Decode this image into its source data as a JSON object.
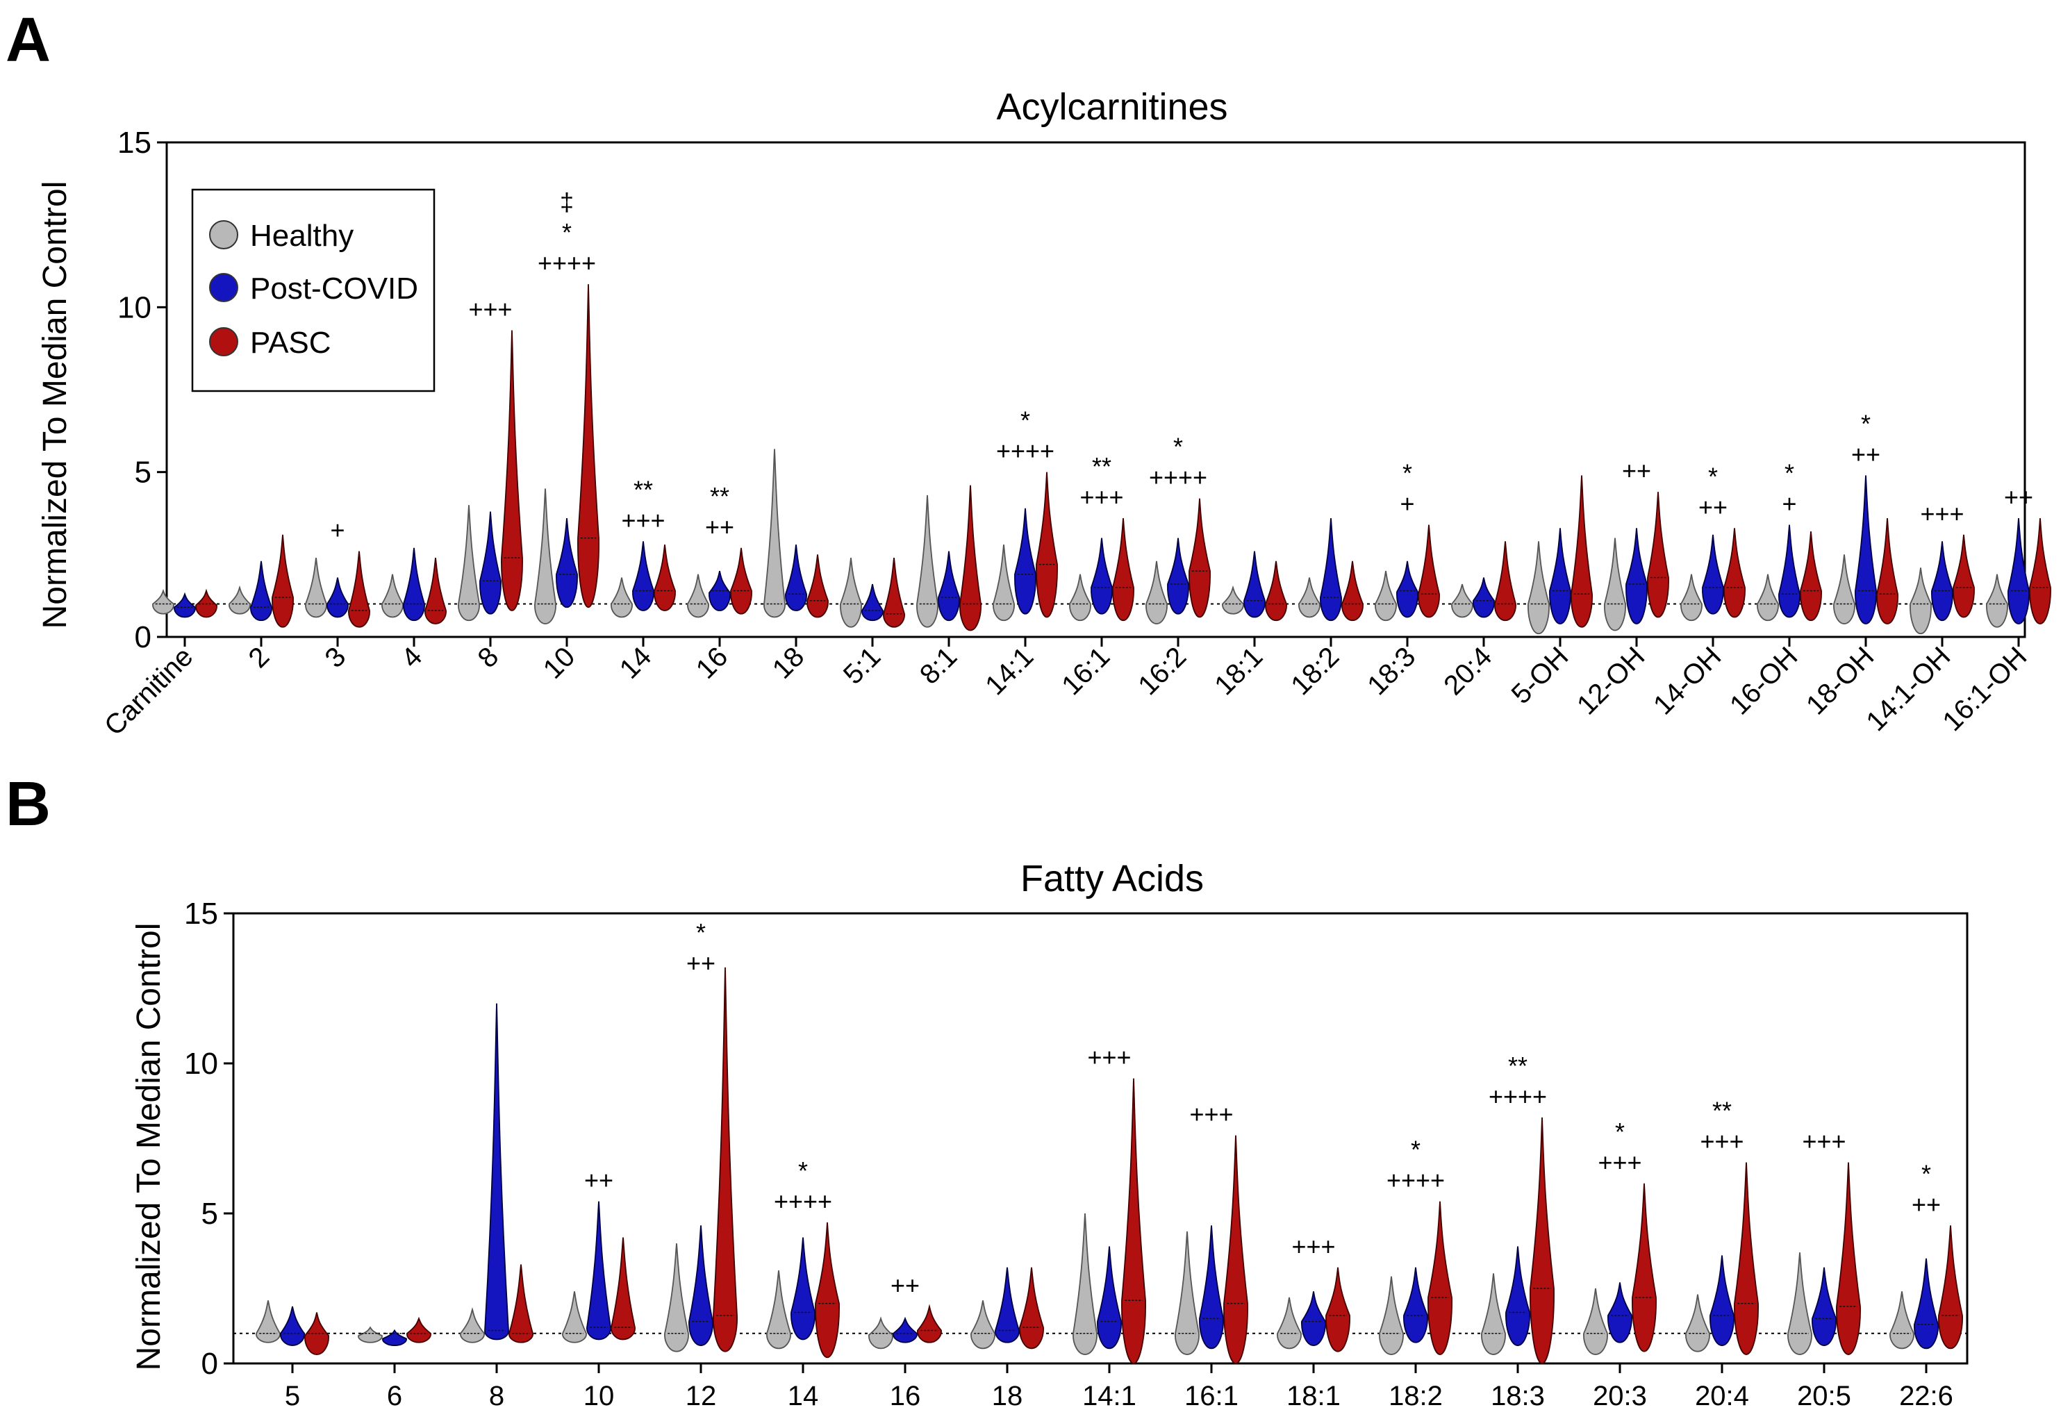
{
  "panels": [
    {
      "letter": "A"
    },
    {
      "letter": "B"
    }
  ],
  "legend": {
    "items": [
      {
        "label": "Healthy",
        "color": "#b8b8b8"
      },
      {
        "label": "Post-COVID",
        "color": "#1515c0"
      },
      {
        "label": "PASC",
        "color": "#b01010"
      }
    ]
  },
  "chart_data": [
    {
      "type": "violin",
      "panel": "A",
      "title": "Acylcarnitines",
      "ylabel": "Normalized To Median Control",
      "xlabel": "",
      "ylim": [
        0,
        15
      ],
      "yticks": [
        0,
        5,
        10,
        15
      ],
      "reference_line": 1,
      "series": [
        "Healthy",
        "Post-COVID",
        "PASC"
      ],
      "categories": [
        "Carnitine",
        "2",
        "3",
        "4",
        "8",
        "10",
        "14",
        "16",
        "18",
        "5:1",
        "8:1",
        "14:1",
        "16:1",
        "16:2",
        "18:1",
        "18:2",
        "18:3",
        "20:4",
        "5-OH",
        "12-OH",
        "14-OH",
        "16-OH",
        "18-OH",
        "14:1-OH",
        "16:1-OH"
      ],
      "max_values": {
        "Healthy": [
          1.4,
          1.5,
          2.4,
          1.9,
          4.0,
          4.5,
          1.8,
          1.9,
          5.7,
          2.4,
          4.3,
          2.8,
          1.9,
          2.3,
          1.5,
          1.8,
          2.0,
          1.6,
          2.9,
          3.0,
          1.9,
          1.9,
          2.5,
          2.1,
          1.9
        ],
        "Post-COVID": [
          1.3,
          2.3,
          1.8,
          2.7,
          3.8,
          3.6,
          2.9,
          2.0,
          2.8,
          1.6,
          2.6,
          3.9,
          3.0,
          3.0,
          2.6,
          3.6,
          2.3,
          1.8,
          3.3,
          3.3,
          3.1,
          3.4,
          4.9,
          2.9,
          3.6
        ],
        "PASC": [
          1.4,
          3.1,
          2.6,
          2.4,
          9.3,
          10.7,
          2.8,
          2.7,
          2.5,
          2.4,
          4.6,
          5.0,
          3.6,
          4.2,
          2.3,
          2.3,
          3.4,
          2.9,
          4.9,
          4.4,
          3.3,
          3.2,
          3.6,
          3.1,
          3.6
        ]
      },
      "min_values": {
        "Healthy": [
          0.7,
          0.7,
          0.6,
          0.6,
          0.5,
          0.4,
          0.6,
          0.6,
          0.6,
          0.3,
          0.3,
          0.5,
          0.5,
          0.4,
          0.7,
          0.6,
          0.5,
          0.6,
          0.1,
          0.2,
          0.5,
          0.5,
          0.4,
          0.1,
          0.3
        ],
        "Post-COVID": [
          0.6,
          0.5,
          0.6,
          0.5,
          0.7,
          0.9,
          0.8,
          0.8,
          0.8,
          0.5,
          0.5,
          0.7,
          0.7,
          0.7,
          0.6,
          0.5,
          0.6,
          0.6,
          0.4,
          0.4,
          0.7,
          0.6,
          0.4,
          0.5,
          0.4
        ],
        "PASC": [
          0.6,
          0.3,
          0.3,
          0.4,
          0.8,
          0.9,
          0.8,
          0.7,
          0.6,
          0.3,
          0.2,
          0.6,
          0.5,
          0.6,
          0.5,
          0.5,
          0.6,
          0.5,
          0.3,
          0.6,
          0.6,
          0.5,
          0.4,
          0.6,
          0.4
        ]
      },
      "median_values": {
        "Healthy": [
          1.0,
          1.0,
          1.0,
          1.0,
          1.0,
          1.0,
          1.0,
          1.0,
          1.0,
          1.0,
          1.0,
          1.0,
          1.0,
          1.0,
          1.0,
          1.0,
          1.0,
          1.0,
          1.0,
          1.0,
          1.0,
          1.0,
          1.0,
          1.0,
          1.0
        ],
        "Post-COVID": [
          0.9,
          0.9,
          1.0,
          1.0,
          1.7,
          1.9,
          1.4,
          1.4,
          1.3,
          0.8,
          1.2,
          1.9,
          1.5,
          1.6,
          1.1,
          1.2,
          1.4,
          1.1,
          1.4,
          1.6,
          1.5,
          1.3,
          1.4,
          1.4,
          1.4
        ],
        "PASC": [
          1.0,
          1.2,
          0.8,
          0.8,
          2.4,
          3.0,
          1.4,
          1.4,
          1.1,
          0.7,
          1.0,
          2.2,
          1.5,
          2.0,
          1.0,
          1.0,
          1.3,
          1.0,
          1.3,
          1.8,
          1.5,
          1.4,
          1.3,
          1.5,
          1.5
        ]
      },
      "annotations": [
        {
          "category": "3",
          "lines": [
            "+"
          ]
        },
        {
          "category": "8",
          "lines": [
            "+++"
          ]
        },
        {
          "category": "10",
          "lines": [
            "‡",
            "*",
            "++++"
          ]
        },
        {
          "category": "14",
          "lines": [
            "**",
            "+++"
          ]
        },
        {
          "category": "16",
          "lines": [
            "**",
            "++"
          ]
        },
        {
          "category": "14:1",
          "lines": [
            "*",
            "++++"
          ]
        },
        {
          "category": "16:1",
          "lines": [
            "**",
            "+++"
          ]
        },
        {
          "category": "16:2",
          "lines": [
            "*",
            "++++"
          ]
        },
        {
          "category": "18:3",
          "lines": [
            "*",
            "+"
          ]
        },
        {
          "category": "12-OH",
          "lines": [
            "++"
          ]
        },
        {
          "category": "14-OH",
          "lines": [
            "*",
            "++"
          ]
        },
        {
          "category": "16-OH",
          "lines": [
            "*",
            "+"
          ]
        },
        {
          "category": "18-OH",
          "lines": [
            "*",
            "++"
          ]
        },
        {
          "category": "14:1-OH",
          "lines": [
            "+++"
          ]
        },
        {
          "category": "16:1-OH",
          "lines": [
            "++"
          ]
        }
      ]
    },
    {
      "type": "violin",
      "panel": "B",
      "title": "Fatty Acids",
      "ylabel": "Normalized To Median Control",
      "xlabel": "",
      "ylim": [
        0,
        15
      ],
      "yticks": [
        0,
        5,
        10,
        15
      ],
      "reference_line": 1,
      "series": [
        "Healthy",
        "Post-COVID",
        "PASC"
      ],
      "categories": [
        "5",
        "6",
        "8",
        "10",
        "12",
        "14",
        "16",
        "18",
        "14:1",
        "16:1",
        "18:1",
        "18:2",
        "18:3",
        "20:3",
        "20:4",
        "20:5",
        "22:6"
      ],
      "max_values": {
        "Healthy": [
          2.1,
          1.2,
          1.8,
          2.4,
          4.0,
          3.1,
          1.5,
          2.1,
          5.0,
          4.4,
          2.2,
          2.9,
          3.0,
          2.5,
          2.3,
          3.7,
          2.4
        ],
        "Post-COVID": [
          1.9,
          1.1,
          12.0,
          5.4,
          4.6,
          4.2,
          1.5,
          3.2,
          3.9,
          4.6,
          2.4,
          3.2,
          3.9,
          2.7,
          3.6,
          3.2,
          3.5
        ],
        "PASC": [
          1.7,
          1.5,
          3.3,
          4.2,
          13.2,
          4.7,
          1.9,
          3.2,
          9.5,
          7.6,
          3.2,
          5.4,
          8.2,
          6.0,
          6.7,
          6.7,
          4.6
        ]
      },
      "min_values": {
        "Healthy": [
          0.7,
          0.7,
          0.7,
          0.7,
          0.4,
          0.5,
          0.5,
          0.5,
          0.3,
          0.3,
          0.5,
          0.3,
          0.3,
          0.3,
          0.4,
          0.3,
          0.5
        ],
        "Post-COVID": [
          0.6,
          0.6,
          0.8,
          0.8,
          0.6,
          0.8,
          0.7,
          0.7,
          0.5,
          0.5,
          0.6,
          0.7,
          0.6,
          0.7,
          0.6,
          0.6,
          0.5
        ],
        "PASC": [
          0.3,
          0.7,
          0.7,
          0.8,
          0.4,
          0.2,
          0.7,
          0.5,
          0.0,
          0.0,
          0.4,
          0.3,
          0.0,
          0.4,
          0.3,
          0.3,
          0.5
        ]
      },
      "median_values": {
        "Healthy": [
          1.0,
          1.0,
          1.0,
          1.0,
          1.0,
          1.0,
          1.0,
          1.0,
          1.0,
          1.0,
          1.0,
          1.0,
          1.0,
          1.0,
          1.0,
          1.0,
          1.0
        ],
        "Post-COVID": [
          1.0,
          1.0,
          1.1,
          1.2,
          1.4,
          1.7,
          1.0,
          1.1,
          1.4,
          1.5,
          1.4,
          1.6,
          1.7,
          1.6,
          1.6,
          1.5,
          1.3
        ],
        "PASC": [
          1.0,
          1.0,
          1.0,
          1.2,
          1.6,
          2.0,
          1.1,
          1.2,
          2.1,
          2.0,
          1.6,
          2.2,
          2.5,
          2.2,
          2.0,
          1.9,
          1.6
        ]
      },
      "annotations": [
        {
          "category": "10",
          "lines": [
            "++"
          ]
        },
        {
          "category": "12",
          "lines": [
            "*",
            "++"
          ]
        },
        {
          "category": "14",
          "lines": [
            "*",
            "++++"
          ]
        },
        {
          "category": "16",
          "lines": [
            "++"
          ]
        },
        {
          "category": "14:1",
          "lines": [
            "+++"
          ]
        },
        {
          "category": "16:1",
          "lines": [
            "+++"
          ]
        },
        {
          "category": "18:1",
          "lines": [
            "+++"
          ]
        },
        {
          "category": "18:2",
          "lines": [
            "*",
            "++++"
          ]
        },
        {
          "category": "18:3",
          "lines": [
            "**",
            "++++"
          ]
        },
        {
          "category": "20:3",
          "lines": [
            "*",
            "+++"
          ]
        },
        {
          "category": "20:4",
          "lines": [
            "**",
            "+++"
          ]
        },
        {
          "category": "20:5",
          "lines": [
            "+++"
          ]
        },
        {
          "category": "22:6",
          "lines": [
            "*",
            "++"
          ]
        }
      ]
    }
  ]
}
